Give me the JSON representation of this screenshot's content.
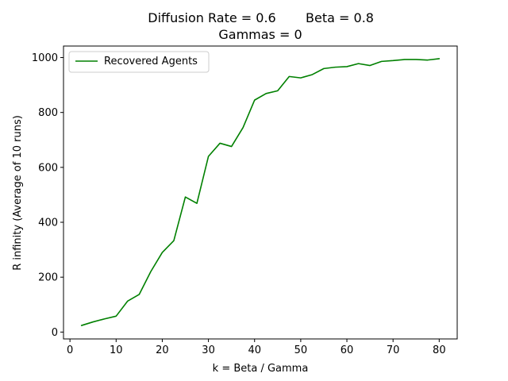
{
  "chart_data": {
    "type": "line",
    "title_line1_left": "Diffusion Rate = 0.6",
    "title_line1_right": "Beta = 0.8",
    "title_line2": "Gammas = 0",
    "xlabel": "k = Beta / Gamma",
    "ylabel": "R infinity (Average of 10 runs)",
    "xlim": [
      -1.4,
      83.9
    ],
    "ylim": [
      -25,
      1042
    ],
    "xticks": [
      0,
      10,
      20,
      30,
      40,
      50,
      60,
      70,
      80
    ],
    "yticks": [
      0,
      200,
      400,
      600,
      800,
      1000
    ],
    "grid": false,
    "legend_position": "top-left",
    "colors": {
      "series": "#008000"
    },
    "series": [
      {
        "name": "Recovered Agents",
        "x": [
          2.5,
          5,
          7.5,
          10,
          12.5,
          15,
          17.5,
          20,
          22.5,
          25,
          27.5,
          30,
          32.5,
          35,
          37.5,
          40,
          42.5,
          45,
          47.5,
          50,
          52.5,
          55,
          57.5,
          60,
          62.5,
          65,
          67.5,
          70,
          72.5,
          75,
          77.5,
          80
        ],
        "y": [
          24,
          37,
          48,
          58,
          113,
          137,
          220,
          290,
          333,
          492,
          469,
          640,
          688,
          676,
          745,
          845,
          869,
          879,
          931,
          926,
          938,
          960,
          965,
          967,
          978,
          971,
          986,
          989,
          993,
          993,
          991,
          996
        ]
      }
    ]
  }
}
